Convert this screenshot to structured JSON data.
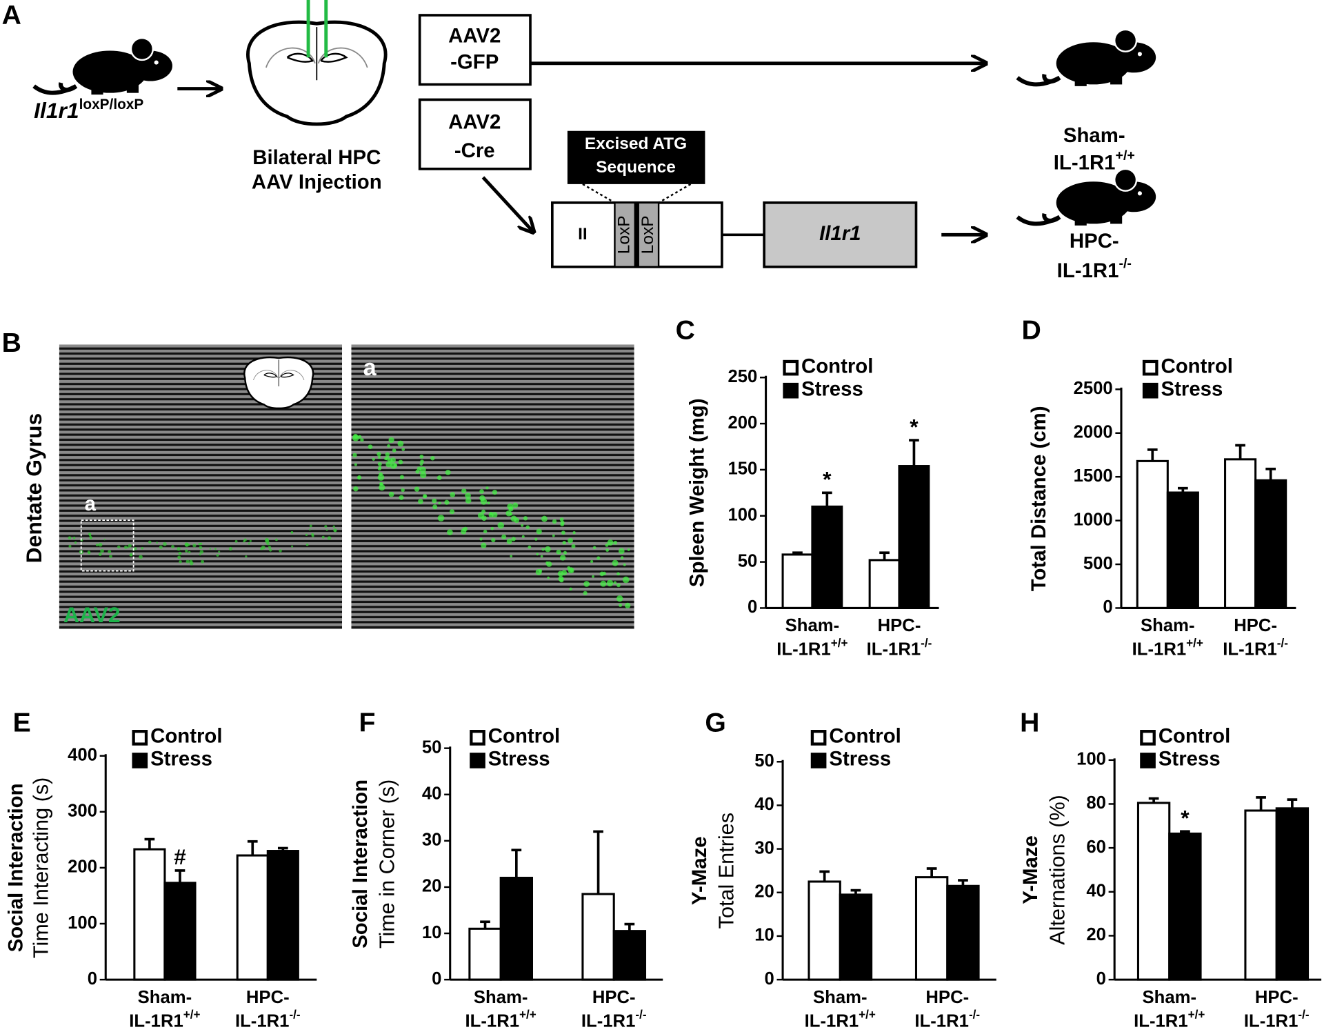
{
  "panel_a": {
    "label": "A",
    "mouse_genotype": "Il1r1",
    "mouse_genotype_sup": "loxP/loxP",
    "injection": [
      "Bilateral HPC",
      "AAV Injection"
    ],
    "gfp_virus": [
      "AAV2",
      "-GFP"
    ],
    "cre_virus": [
      "AAV2",
      "-Cre"
    ],
    "excised": [
      "Excised ATG",
      "Sequence"
    ],
    "exon": "II",
    "loxp": [
      "LoxP",
      "LoxP"
    ],
    "gene": "Il1r1",
    "sham": [
      "Sham-",
      "IL-1R1",
      "+/+"
    ],
    "hpc": [
      "HPC-",
      "IL-1R1",
      "-/-"
    ]
  },
  "panel_b": {
    "label": "B",
    "region": "Dentate Gyrus",
    "inset_labels": [
      "a",
      "a"
    ],
    "stain": "AAV2"
  },
  "chart_data": [
    {
      "type": "bar",
      "label": "C",
      "ylabel": [
        "Spleen Weight (mg)"
      ],
      "categories": [
        [
          "Sham-",
          "IL-1R1",
          "+/+"
        ],
        [
          "HPC-",
          "IL-1R1",
          "-/-"
        ]
      ],
      "series": [
        {
          "name": "Control",
          "color": "#ffffff",
          "values": [
            58,
            52
          ],
          "errors": [
            2,
            8
          ]
        },
        {
          "name": "Stress",
          "color": "#000000",
          "values": [
            110,
            154
          ],
          "errors": [
            15,
            28
          ]
        }
      ],
      "annotations": [
        {
          "text": "*",
          "series": 1,
          "index": 0
        },
        {
          "text": "*",
          "series": 1,
          "index": 1
        }
      ],
      "ylim": [
        0,
        250
      ],
      "yticks": [
        0,
        50,
        100,
        150,
        200,
        250
      ]
    },
    {
      "type": "bar",
      "label": "D",
      "ylabel": [
        "Total Distance (cm)"
      ],
      "categories": [
        [
          "Sham-",
          "IL-1R1",
          "+/+"
        ],
        [
          "HPC-",
          "IL-1R1",
          "-/-"
        ]
      ],
      "series": [
        {
          "name": "Control",
          "color": "#ffffff",
          "values": [
            1680,
            1700
          ],
          "errors": [
            130,
            160
          ]
        },
        {
          "name": "Stress",
          "color": "#000000",
          "values": [
            1320,
            1460
          ],
          "errors": [
            50,
            130
          ]
        }
      ],
      "annotations": [],
      "ylim": [
        0,
        2500
      ],
      "yticks": [
        0,
        500,
        1000,
        1500,
        2000,
        2500
      ]
    },
    {
      "type": "bar",
      "label": "E",
      "ylabel": [
        "Social Interaction",
        "Time Interacting (s)"
      ],
      "categories": [
        [
          "Sham-",
          "IL-1R1",
          "+/+"
        ],
        [
          "HPC-",
          "IL-1R1",
          "-/-"
        ]
      ],
      "series": [
        {
          "name": "Control",
          "color": "#ffffff",
          "values": [
            233,
            222
          ],
          "errors": [
            18,
            25
          ]
        },
        {
          "name": "Stress",
          "color": "#000000",
          "values": [
            173,
            230
          ],
          "errors": [
            22,
            5
          ]
        }
      ],
      "annotations": [
        {
          "text": "#",
          "series": 1,
          "index": 0
        }
      ],
      "ylim": [
        0,
        400
      ],
      "yticks": [
        0,
        100,
        200,
        300,
        400
      ]
    },
    {
      "type": "bar",
      "label": "F",
      "ylabel": [
        "Social Interaction",
        "Time in Corner (s)"
      ],
      "categories": [
        [
          "Sham-",
          "IL-1R1",
          "+/+"
        ],
        [
          "HPC-",
          "IL-1R1",
          "-/-"
        ]
      ],
      "series": [
        {
          "name": "Control",
          "color": "#ffffff",
          "values": [
            11,
            18.5
          ],
          "errors": [
            1.5,
            13.5
          ]
        },
        {
          "name": "Stress",
          "color": "#000000",
          "values": [
            22,
            10.5
          ],
          "errors": [
            6,
            1.5
          ]
        }
      ],
      "annotations": [],
      "ylim": [
        0,
        50
      ],
      "yticks": [
        0,
        10,
        20,
        30,
        40,
        50
      ]
    },
    {
      "type": "bar",
      "label": "G",
      "ylabel": [
        "Y-Maze",
        "Total Entries"
      ],
      "categories": [
        [
          "Sham-",
          "IL-1R1",
          "+/+"
        ],
        [
          "HPC-",
          "IL-1R1",
          "-/-"
        ]
      ],
      "series": [
        {
          "name": "Control",
          "color": "#ffffff",
          "values": [
            22.5,
            23.5
          ],
          "errors": [
            2.3,
            2
          ]
        },
        {
          "name": "Stress",
          "color": "#000000",
          "values": [
            19.5,
            21.5
          ],
          "errors": [
            1,
            1.3
          ]
        }
      ],
      "annotations": [],
      "ylim": [
        0,
        50
      ],
      "yticks": [
        0,
        10,
        20,
        30,
        40,
        50
      ]
    },
    {
      "type": "bar",
      "label": "H",
      "ylabel": [
        "Y-Maze",
        "Alternations (%)"
      ],
      "categories": [
        [
          "Sham-",
          "IL-1R1",
          "+/+"
        ],
        [
          "HPC-",
          "IL-1R1",
          "-/-"
        ]
      ],
      "series": [
        {
          "name": "Control",
          "color": "#ffffff",
          "values": [
            80.5,
            77
          ],
          "errors": [
            2,
            6
          ]
        },
        {
          "name": "Stress",
          "color": "#000000",
          "values": [
            66.5,
            78
          ],
          "errors": [
            1,
            4
          ]
        }
      ],
      "annotations": [
        {
          "text": "*",
          "series": 1,
          "index": 0
        }
      ],
      "ylim": [
        0,
        100
      ],
      "yticks": [
        0,
        20,
        40,
        60,
        80,
        100
      ]
    }
  ]
}
